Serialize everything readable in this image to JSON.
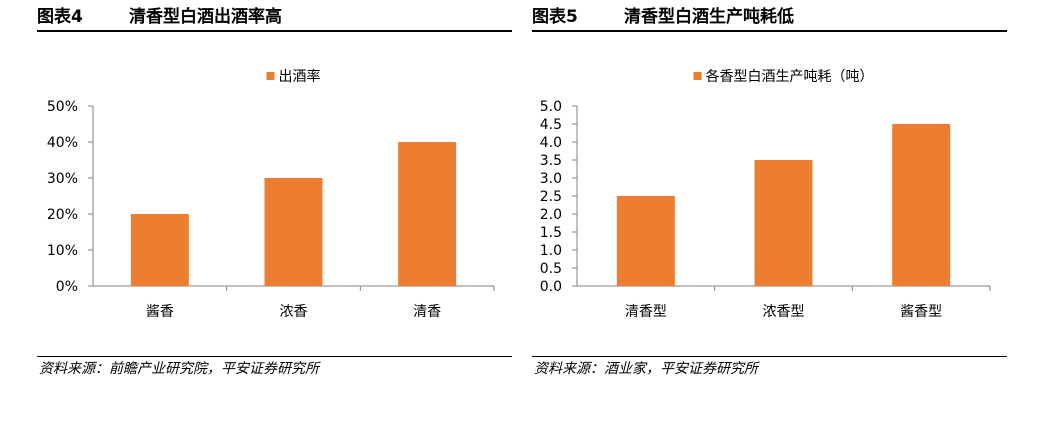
{
  "accent_color": "#ED7D31",
  "figures": [
    {
      "number_label": "图表4",
      "title": "清香型白酒出酒率高",
      "source": "资料来源：前瞻产业研究院，平安证券研究所",
      "chart_data": {
        "type": "bar",
        "categories": [
          "酱香",
          "浓香",
          "清香"
        ],
        "series": [
          {
            "name": "出酒率",
            "values": [
              0.2,
              0.3,
              0.4
            ]
          }
        ],
        "ylim": [
          0,
          0.5
        ],
        "yticks": [
          "0%",
          "10%",
          "20%",
          "30%",
          "40%",
          "50%"
        ],
        "legend": "top-center",
        "grid": false
      }
    },
    {
      "number_label": "图表5",
      "title": "清香型白酒生产吨耗低",
      "source": "资料来源：酒业家，平安证券研究所",
      "chart_data": {
        "type": "bar",
        "categories": [
          "清香型",
          "浓香型",
          "酱香型"
        ],
        "series": [
          {
            "name": "各香型白酒生产吨耗（吨）",
            "values": [
              2.5,
              3.5,
              4.5
            ]
          }
        ],
        "ylim": [
          0,
          5
        ],
        "yticks": [
          "0.0",
          "0.5",
          "1.0",
          "1.5",
          "2.0",
          "2.5",
          "3.0",
          "3.5",
          "4.0",
          "4.5",
          "5.0"
        ],
        "legend": "top-center",
        "grid": false
      }
    }
  ]
}
